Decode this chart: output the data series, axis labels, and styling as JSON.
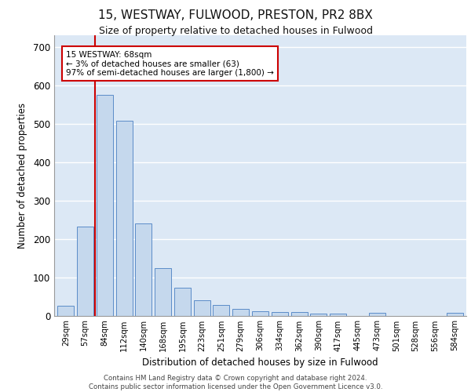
{
  "title_line1": "15, WESTWAY, FULWOOD, PRESTON, PR2 8BX",
  "title_line2": "Size of property relative to detached houses in Fulwood",
  "xlabel": "Distribution of detached houses by size in Fulwood",
  "ylabel": "Number of detached properties",
  "categories": [
    "29sqm",
    "57sqm",
    "84sqm",
    "112sqm",
    "140sqm",
    "168sqm",
    "195sqm",
    "223sqm",
    "251sqm",
    "279sqm",
    "306sqm",
    "334sqm",
    "362sqm",
    "390sqm",
    "417sqm",
    "445sqm",
    "473sqm",
    "501sqm",
    "528sqm",
    "556sqm",
    "584sqm"
  ],
  "values": [
    25,
    232,
    575,
    507,
    240,
    123,
    72,
    40,
    27,
    18,
    12,
    10,
    10,
    6,
    5,
    0,
    8,
    0,
    0,
    0,
    7
  ],
  "bar_color": "#c5d8ed",
  "bar_edge_color": "#5b8cc8",
  "annotation_text": "15 WESTWAY: 68sqm\n← 3% of detached houses are smaller (63)\n97% of semi-detached houses are larger (1,800) →",
  "annotation_box_color": "#ffffff",
  "annotation_box_edge_color": "#cc0000",
  "vline_x": 1.5,
  "vline_color": "#cc0000",
  "background_color": "#dce8f5",
  "grid_color": "#ffffff",
  "ylim": [
    0,
    730
  ],
  "yticks": [
    0,
    100,
    200,
    300,
    400,
    500,
    600,
    700
  ],
  "footer_line1": "Contains HM Land Registry data © Crown copyright and database right 2024.",
  "footer_line2": "Contains public sector information licensed under the Open Government Licence v3.0."
}
